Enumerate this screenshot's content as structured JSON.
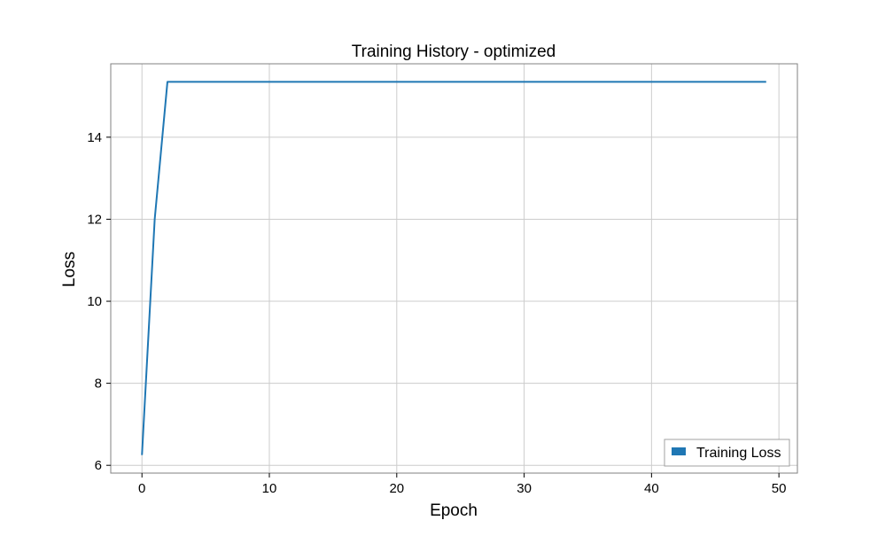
{
  "chart_data": {
    "type": "line",
    "title": "Training History - optimized",
    "xlabel": "Epoch",
    "ylabel": "Loss",
    "xlim": [
      -2.45,
      51.45
    ],
    "ylim": [
      5.81,
      15.79
    ],
    "xticks": [
      0,
      10,
      20,
      30,
      40,
      50
    ],
    "yticks": [
      6,
      8,
      10,
      12,
      14
    ],
    "grid": true,
    "legend_position": "lower-right",
    "series": [
      {
        "name": "Training Loss",
        "color": "#1f77b4",
        "x": [
          0,
          1,
          2,
          3,
          4,
          5,
          6,
          7,
          8,
          9,
          10,
          11,
          12,
          13,
          14,
          15,
          16,
          17,
          18,
          19,
          20,
          21,
          22,
          23,
          24,
          25,
          26,
          27,
          28,
          29,
          30,
          31,
          32,
          33,
          34,
          35,
          36,
          37,
          38,
          39,
          40,
          41,
          42,
          43,
          44,
          45,
          46,
          47,
          48,
          49
        ],
        "values": [
          6.25,
          12.0,
          15.35,
          15.35,
          15.35,
          15.35,
          15.35,
          15.35,
          15.35,
          15.35,
          15.35,
          15.35,
          15.35,
          15.35,
          15.35,
          15.35,
          15.35,
          15.35,
          15.35,
          15.35,
          15.35,
          15.35,
          15.35,
          15.35,
          15.35,
          15.35,
          15.35,
          15.35,
          15.35,
          15.35,
          15.35,
          15.35,
          15.35,
          15.35,
          15.35,
          15.35,
          15.35,
          15.35,
          15.35,
          15.35,
          15.35,
          15.35,
          15.35,
          15.35,
          15.35,
          15.35,
          15.35,
          15.35,
          15.35,
          15.35
        ]
      }
    ]
  }
}
